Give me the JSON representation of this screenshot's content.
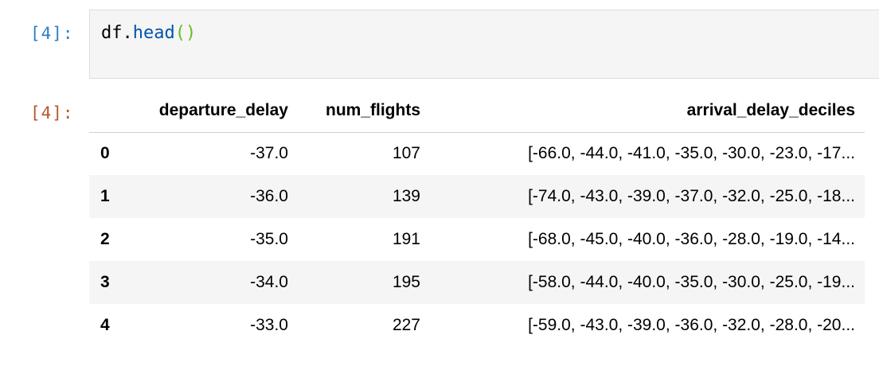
{
  "input_cell": {
    "prompt": "[4]:",
    "code": {
      "object": "df",
      "dot": ".",
      "method": "head",
      "parens": "()"
    }
  },
  "output_cell": {
    "prompt": "[4]:",
    "columns": [
      "departure_delay",
      "num_flights",
      "arrival_delay_deciles"
    ],
    "rows": [
      {
        "index": "0",
        "departure_delay": "-37.0",
        "num_flights": "107",
        "arrival_delay_deciles": "[-66.0, -44.0, -41.0, -35.0, -30.0, -23.0, -17..."
      },
      {
        "index": "1",
        "departure_delay": "-36.0",
        "num_flights": "139",
        "arrival_delay_deciles": "[-74.0, -43.0, -39.0, -37.0, -32.0, -25.0, -18..."
      },
      {
        "index": "2",
        "departure_delay": "-35.0",
        "num_flights": "191",
        "arrival_delay_deciles": "[-68.0, -45.0, -40.0, -36.0, -28.0, -19.0, -14..."
      },
      {
        "index": "3",
        "departure_delay": "-34.0",
        "num_flights": "195",
        "arrival_delay_deciles": "[-58.0, -44.0, -40.0, -35.0, -30.0, -25.0, -19..."
      },
      {
        "index": "4",
        "departure_delay": "-33.0",
        "num_flights": "227",
        "arrival_delay_deciles": "[-59.0, -43.0, -39.0, -36.0, -32.0, -28.0, -20..."
      }
    ]
  },
  "colors": {
    "input_prompt": "#307fc1",
    "output_prompt": "#b8582e",
    "code_background": "#f5f5f5",
    "stripe_background": "#f5f5f5",
    "method_token": "#0055aa",
    "paren_token": "#66bb22"
  }
}
